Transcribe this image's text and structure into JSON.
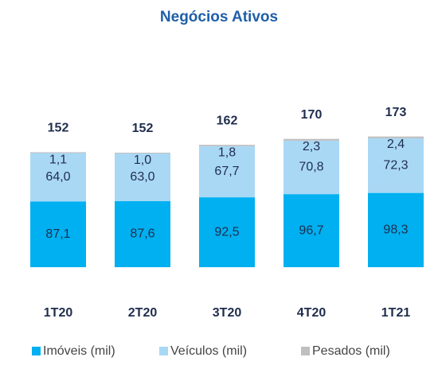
{
  "chart_data": {
    "type": "stacked_bar",
    "title": "Negócios Ativos",
    "categories": [
      "1T20",
      "2T20",
      "3T20",
      "4T20",
      "1T21"
    ],
    "totals": [
      152,
      152,
      162,
      170,
      173
    ],
    "series": [
      {
        "name": "Imóveis (mil)",
        "color": "#00b0f0",
        "values": [
          87.1,
          87.6,
          92.5,
          96.7,
          98.3
        ],
        "value_labels": [
          "87,1",
          "87,6",
          "92,5",
          "96,7",
          "98,3"
        ]
      },
      {
        "name": "Veículos (mil)",
        "color": "#a9d8f5",
        "values": [
          64.0,
          63.0,
          67.7,
          70.8,
          72.3
        ],
        "value_labels": [
          "64,0",
          "63,0",
          "67,7",
          "70,8",
          "72,3"
        ]
      },
      {
        "name": "Pesados (mil)",
        "color": "#bfbfbf",
        "values": [
          1.1,
          1.0,
          1.8,
          2.3,
          2.4
        ],
        "value_labels": [
          "1,1",
          "1,0",
          "1,8",
          "2,3",
          "2,4"
        ]
      }
    ]
  }
}
